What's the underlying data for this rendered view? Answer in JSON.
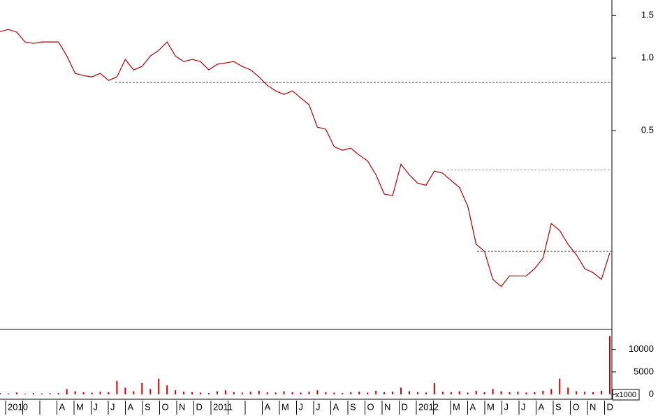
{
  "chart_data": [
    {
      "type": "line",
      "log_scale": true,
      "color": "#b00000",
      "ylim": [
        0.075,
        1.74
      ],
      "yticks": [
        {
          "value": 0.5,
          "label": "0.5"
        },
        {
          "value": 1,
          "label": "1.0"
        },
        {
          "value": 1.5,
          "label": "1.5"
        }
      ],
      "reference_lines": [
        0.792,
        0.344,
        0.158
      ],
      "x_axis_labels": [
        "2010",
        null,
        null,
        "A",
        "M",
        "J",
        "J",
        "A",
        "S",
        "O",
        "N",
        "D",
        "2011",
        null,
        null,
        "A",
        "M",
        "J",
        "J",
        "A",
        "S",
        "O",
        "N",
        "D",
        "2012",
        null,
        "M",
        "A",
        "M",
        "J",
        "J",
        "A",
        "S",
        "O",
        "N",
        "D"
      ],
      "series": [
        {
          "values": [
            1.288,
            1.314,
            1.28,
            1.166,
            1.15,
            1.166,
            1.166,
            1.166,
            1.02,
            0.864,
            0.846,
            0.835,
            0.864,
            0.808,
            0.835,
            0.987,
            0.893,
            0.923,
            1.02,
            1.076,
            1.166,
            1.02,
            0.967,
            0.987,
            0.967,
            0.893,
            0.942,
            0.954,
            0.967,
            0.923,
            0.893,
            0.835,
            0.771,
            0.731,
            0.707,
            0.731,
            0.684,
            0.64,
            0.517,
            0.507,
            0.429,
            0.415,
            0.423,
            0.396,
            0.375,
            0.328,
            0.273,
            0.269,
            0.363,
            0.328,
            0.303,
            0.297,
            0.34,
            0.333,
            0.311,
            0.291,
            0.243,
            0.169,
            0.158,
            0.121,
            0.113,
            0.125,
            0.125,
            0.125,
            0.134,
            0.148,
            0.206,
            0.193,
            0.169,
            0.153,
            0.134,
            0.129,
            0.121,
            0.156
          ]
        }
      ]
    },
    {
      "type": "bar",
      "color": "#cc0000",
      "unit_label": "x1000",
      "ylim": [
        0,
        14000
      ],
      "yticks": [
        0,
        5000,
        10000
      ],
      "values": [
        300,
        200,
        400,
        150,
        300,
        200,
        250,
        300,
        1200,
        700,
        500,
        400,
        600,
        500,
        3000,
        1500,
        700,
        2500,
        1200,
        3500,
        2000,
        900,
        600,
        500,
        400,
        300,
        700,
        900,
        500,
        400,
        600,
        800,
        500,
        400,
        700,
        500,
        400,
        600,
        900,
        500,
        400,
        300,
        500,
        600,
        400,
        800,
        500,
        600,
        1500,
        700,
        500,
        400,
        2500,
        600,
        500,
        700,
        400,
        800,
        500,
        1200,
        700,
        500,
        600,
        400,
        500,
        800,
        1200,
        3500,
        1500,
        700,
        600,
        500,
        800,
        13000
      ]
    }
  ]
}
